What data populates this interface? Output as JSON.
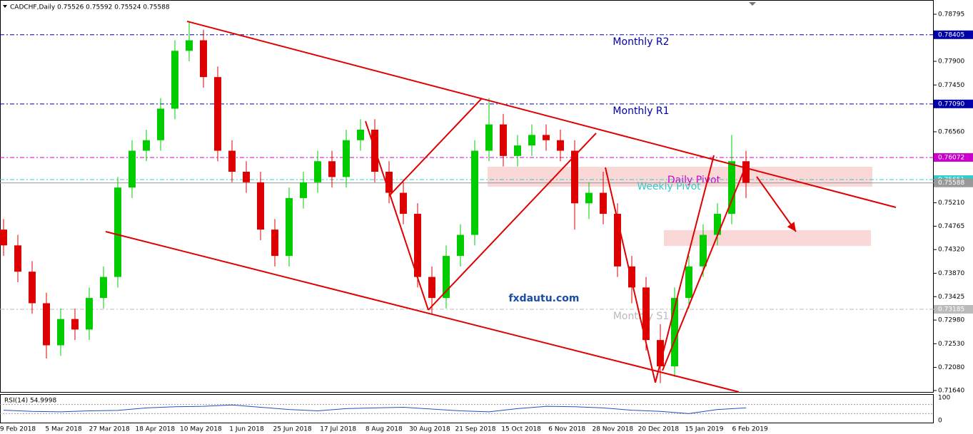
{
  "chart_data": {
    "type": "candlestick",
    "title": "CADCHF,Daily  0.75526 0.75592 0.75524 0.75588",
    "up_color": "#00cc00",
    "down_color": "#dd0000",
    "ylim": [
      0.7164,
      0.78795
    ],
    "yticks": [
      0.78795,
      {
        "value": 0.779,
        "label": "0.77900"
      },
      {
        "value": 0.7745,
        "label": "0.77450"
      },
      {
        "value": 0.7656,
        "label": "0.76560"
      },
      {
        "value": 0.7521,
        "label": "0.75210"
      },
      0.74765,
      {
        "value": 0.7432,
        "label": "0.74320"
      },
      {
        "value": 0.7387,
        "label": "0.73870"
      },
      0.73425,
      {
        "value": 0.7298,
        "label": "0.72980"
      },
      {
        "value": 0.7253,
        "label": "0.72530"
      },
      {
        "value": 0.7208,
        "label": "0.72080"
      },
      {
        "value": 0.7164,
        "label": "0.71640"
      }
    ],
    "x_labels": [
      "9 Feb 2018",
      "5 Mar 2018",
      "27 Mar 2018",
      "18 Apr 2018",
      "10 May 2018",
      "1 Jun 2018",
      "25 Jun 2018",
      "17 Jul 2018",
      "8 Aug 2018",
      "30 Aug 2018",
      "21 Sep 2018",
      "15 Oct 2018",
      "6 Nov 2018",
      "28 Nov 2018",
      "20 Dec 2018",
      "15 Jan 2019",
      "6 Feb 2019"
    ],
    "candles": {
      "open": [
        0.747,
        0.744,
        0.739,
        0.733,
        0.725,
        0.73,
        0.728,
        0.734,
        0.738,
        0.755,
        0.762,
        0.764,
        0.77,
        0.781,
        0.783,
        0.776,
        0.762,
        0.758,
        0.756,
        0.747,
        0.742,
        0.753,
        0.756,
        0.76,
        0.757,
        0.764,
        0.766,
        0.758,
        0.754,
        0.75,
        0.738,
        0.734,
        0.742,
        0.746,
        0.762,
        0.767,
        0.761,
        0.763,
        0.765,
        0.764,
        0.762,
        0.752,
        0.754,
        0.75,
        0.74,
        0.736,
        0.726,
        0.721,
        0.734,
        0.74,
        0.746,
        0.75,
        0.76
      ],
      "high": [
        0.749,
        0.746,
        0.741,
        0.735,
        0.732,
        0.732,
        0.736,
        0.74,
        0.757,
        0.764,
        0.766,
        0.772,
        0.783,
        0.7865,
        0.785,
        0.778,
        0.764,
        0.76,
        0.758,
        0.749,
        0.755,
        0.758,
        0.762,
        0.762,
        0.766,
        0.768,
        0.768,
        0.76,
        0.756,
        0.752,
        0.74,
        0.744,
        0.748,
        0.764,
        0.772,
        0.769,
        0.765,
        0.767,
        0.767,
        0.766,
        0.764,
        0.756,
        0.758,
        0.752,
        0.742,
        0.738,
        0.729,
        0.736,
        0.742,
        0.748,
        0.752,
        0.765,
        0.762
      ],
      "low": [
        0.742,
        0.737,
        0.731,
        0.7225,
        0.723,
        0.726,
        0.726,
        0.732,
        0.736,
        0.753,
        0.76,
        0.762,
        0.768,
        0.779,
        0.774,
        0.76,
        0.756,
        0.754,
        0.745,
        0.74,
        0.74,
        0.751,
        0.754,
        0.755,
        0.755,
        0.762,
        0.756,
        0.752,
        0.748,
        0.736,
        0.731,
        0.732,
        0.74,
        0.744,
        0.76,
        0.759,
        0.759,
        0.761,
        0.762,
        0.76,
        0.747,
        0.749,
        0.748,
        0.738,
        0.733,
        0.724,
        0.7178,
        0.719,
        0.732,
        0.738,
        0.744,
        0.748,
        0.753
      ],
      "close": [
        0.744,
        0.739,
        0.733,
        0.725,
        0.73,
        0.728,
        0.734,
        0.738,
        0.755,
        0.762,
        0.764,
        0.77,
        0.781,
        0.783,
        0.776,
        0.762,
        0.758,
        0.756,
        0.747,
        0.742,
        0.753,
        0.756,
        0.76,
        0.757,
        0.764,
        0.766,
        0.758,
        0.754,
        0.75,
        0.738,
        0.734,
        0.742,
        0.746,
        0.762,
        0.767,
        0.761,
        0.763,
        0.765,
        0.764,
        0.762,
        0.752,
        0.754,
        0.75,
        0.74,
        0.736,
        0.726,
        0.721,
        0.734,
        0.74,
        0.746,
        0.75,
        0.76,
        0.7559
      ]
    },
    "levels": [
      {
        "name": "Monthly R2",
        "value": 0.78405,
        "color": "#0000aa"
      },
      {
        "name": "Monthly R1",
        "value": 0.7709,
        "value_label": "0.77090",
        "color": "#0000aa"
      },
      {
        "name": "Daily Pivot",
        "value": 0.76072,
        "color": "#cc00cc"
      },
      {
        "name": "Weekly Pivot",
        "value": 0.75651,
        "color": "#33cccc"
      },
      {
        "value": 0.75588,
        "color": "#999999"
      },
      {
        "name": "Monthly S1",
        "value": 0.73185,
        "color": "#bbbbbb"
      }
    ],
    "drawings": {
      "color": "#e00000",
      "lines": [
        {
          "from": [
            12.85,
            0.7866
          ],
          "to": [
            62.5,
            0.75123
          ]
        },
        {
          "from": [
            7.15,
            0.74662
          ],
          "to": [
            51.5,
            0.71613
          ]
        },
        {
          "from": [
            25.35,
            0.76762
          ],
          "to": [
            29.75,
            0.73172
          ]
        },
        {
          "from": [
            29.75,
            0.73172
          ],
          "to": [
            41.5,
            0.76532
          ]
        },
        {
          "from": [
            27,
            0.7534
          ],
          "to": [
            33.5,
            0.77196
          ]
        },
        {
          "from": [
            42.15,
            0.75882
          ],
          "to": [
            45.65,
            0.7179
          ]
        },
        {
          "from": [
            45.65,
            0.7179
          ],
          "to": [
            49.75,
            0.76112
          ]
        },
        {
          "from": [
            46.15,
            0.7202
          ],
          "to": [
            52,
            0.75922
          ]
        }
      ],
      "arrow": {
        "from": [
          52.75,
          0.75706
        ],
        "to": [
          55.5,
          0.74662
        ]
      },
      "zones": [
        {
          "from": [
            33.9,
            0.75895
          ],
          "to": [
            60.85,
            0.75516
          ]
        },
        {
          "from": [
            46.25,
            0.7469
          ],
          "to": [
            60.75,
            0.74391
          ]
        }
      ]
    },
    "watermark": "fxdautu.com",
    "rsi": {
      "title": "RSI(14) 54.9998",
      "ylim": [
        0,
        100
      ],
      "yticks": [
        0,
        100
      ],
      "levels": [
        30,
        70
      ],
      "color": "#2050c0",
      "values": [
        45,
        40,
        38,
        42,
        44,
        55,
        60,
        62,
        68,
        58,
        48,
        42,
        52,
        55,
        58,
        50,
        42,
        38,
        52,
        62,
        60,
        55,
        45,
        40,
        30,
        48,
        55
      ]
    }
  }
}
